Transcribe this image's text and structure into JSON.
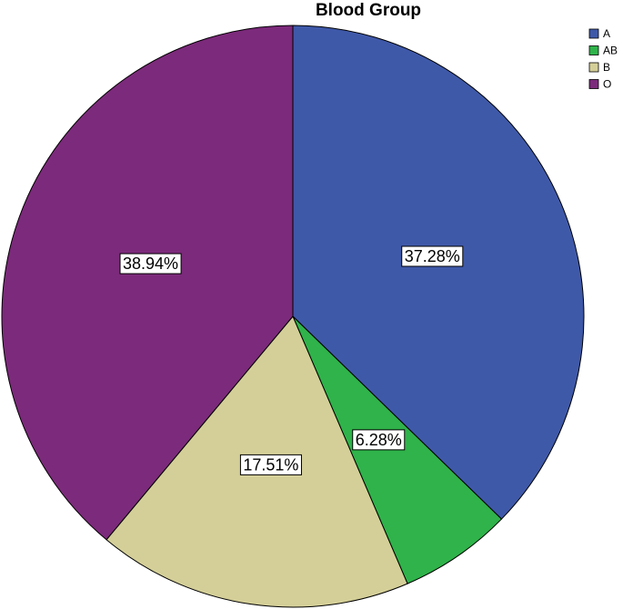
{
  "chart_data": {
    "type": "pie",
    "title": "Blood Group",
    "categories": [
      "A",
      "AB",
      "B",
      "O"
    ],
    "values": [
      37.28,
      6.28,
      17.51,
      38.94
    ],
    "value_labels": [
      "37.28%",
      "6.28%",
      "17.51%",
      "38.94%"
    ],
    "colors": [
      "#3f59a9",
      "#2fb34a",
      "#d4cf98",
      "#7c2a7b"
    ],
    "legend": "top-right"
  }
}
